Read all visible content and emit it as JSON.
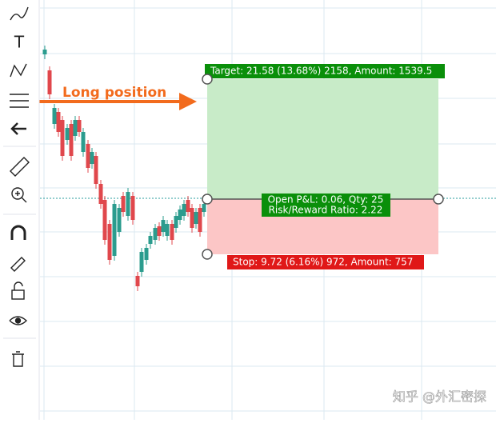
{
  "toolbar": {
    "text_tool": "T"
  },
  "annotation": "Long position",
  "position": {
    "target_label": "Target: 21.58 (13.68%) 2158, Amount: 1539.5",
    "open_label_line1": "Open P&L: 0.06, Qty: 25",
    "open_label_line2": "Risk/Reward Ratio: 2.22",
    "stop_label": "Stop: 9.72 (6.16%) 972, Amount: 757"
  },
  "watermark": "知乎 @外汇密探"
}
